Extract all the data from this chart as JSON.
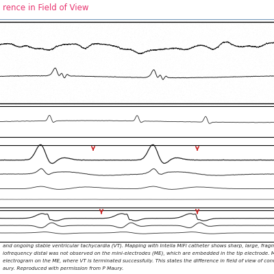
{
  "title": "rence in Field of View",
  "title_color": "#e8336e",
  "title_fontsize": 8.5,
  "separator_color": "#7799bb",
  "arrow_color": "#cc2222",
  "line_color": "#111111",
  "caption_lines": [
    "and ongoing stable ventricular tachycardia (VT). Mapping with Intella MiFi catheter shows sharp, large, fragmented m",
    "iofrequency distal was not observed on the mini-electrodes (ME), which are embedded in the tip electrode. Moveme",
    "electrogram on the ME, where VT is terminated successfully. This states the difference in field of view of convention",
    "aury. Reproduced with permission from P Maury."
  ],
  "caption_fontsize": 5.2,
  "panel1_bg": "#b0b0b0",
  "panel2_bg": "#d0d0d0",
  "panel3_bg": "#e8e8e8",
  "panel4_bg": "#e8e8e8",
  "fig_bg": "#ffffff"
}
